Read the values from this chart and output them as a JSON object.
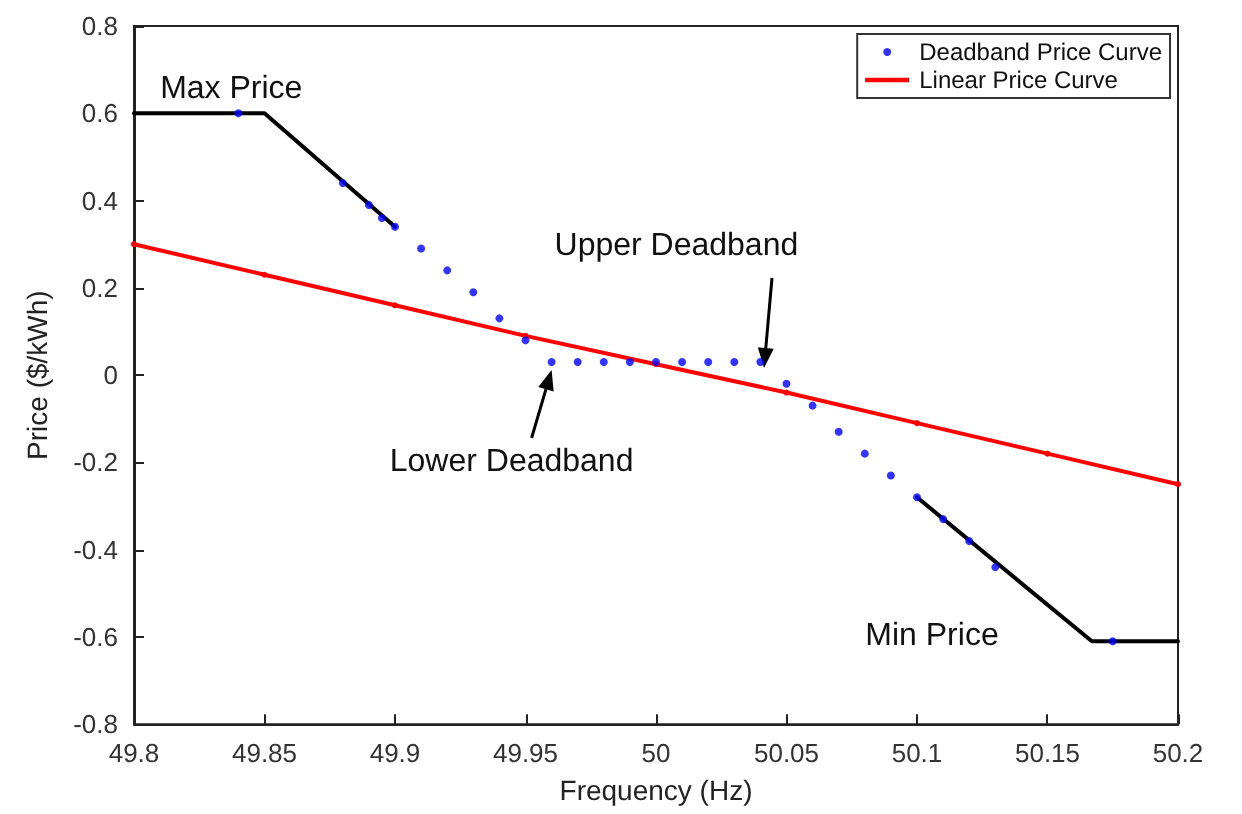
{
  "chart_data": {
    "type": "line",
    "xlabel": "Frequency (Hz)",
    "ylabel": "Price ($/kWh)",
    "xlim": [
      49.8,
      50.2
    ],
    "xticks": [
      49.8,
      49.85,
      49.9,
      49.95,
      50,
      50.05,
      50.1,
      50.15,
      50.2
    ],
    "ylim": [
      -0.8,
      0.8
    ],
    "yticks": [
      -0.8,
      -0.6,
      -0.4,
      -0.2,
      0,
      0.2,
      0.4,
      0.6,
      0.8
    ],
    "grid": false,
    "legend": "top right",
    "series": [
      {
        "color": "#000000",
        "marker": "none",
        "x": [
          49.8,
          49.85,
          49.9
        ],
        "values": [
          0.6,
          0.6,
          0.34
        ]
      },
      {
        "color": "#000000",
        "marker": "none",
        "x": [
          50.1,
          50.167,
          50.2
        ],
        "values": [
          -0.28,
          -0.61,
          -0.61
        ]
      },
      {
        "type": "scatter",
        "name": "Deadband Price Curve",
        "color": "#0000ff",
        "marker": "circle",
        "x": [
          49.84,
          49.88,
          49.89,
          49.895,
          49.9,
          49.91,
          49.92,
          49.93,
          49.94,
          49.95,
          49.96,
          49.97,
          49.98,
          49.99,
          50,
          50.01,
          50.02,
          50.03,
          50.04,
          50.05,
          50.06,
          50.07,
          50.08,
          50.09,
          50.1,
          50.11,
          50.12,
          50.13,
          50.175
        ],
        "values": [
          0.6,
          0.44,
          0.39,
          0.36,
          0.34,
          0.29,
          0.24,
          0.19,
          0.13,
          0.08,
          0.03,
          0.03,
          0.03,
          0.03,
          0.03,
          0.03,
          0.03,
          0.03,
          0.03,
          -0.02,
          -0.07,
          -0.13,
          -0.18,
          -0.23,
          -0.28,
          -0.33,
          -0.38,
          -0.44,
          -0.61
        ]
      },
      {
        "name": "Linear Price Curve",
        "color": "#ff0000",
        "marker": "circle",
        "x": [
          49.8,
          49.85,
          49.9,
          49.95,
          50,
          50.05,
          50.1,
          50.15,
          50.2
        ],
        "values": [
          0.3,
          0.23,
          0.16,
          0.09,
          0.025,
          -0.04,
          -0.11,
          -0.18,
          -0.25
        ]
      }
    ],
    "annotations": [
      {
        "text": "Max Price",
        "x": 49.825,
        "y": 0.6
      },
      {
        "text": "Lower Deadband",
        "x": 49.96,
        "y": 0.03
      },
      {
        "text": "Upper Deadband",
        "x": 50.04,
        "y": 0.03
      },
      "Min Price"
    ]
  }
}
